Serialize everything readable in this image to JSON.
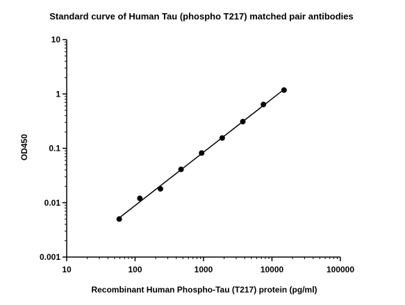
{
  "chart_data": {
    "type": "scatter",
    "title": "Standard curve of Human Tau (phospho T217) matched pair antibodies",
    "xlabel": "Recombinant Human Phospho-Tau (T217) protein (pg/ml)",
    "ylabel": "OD450",
    "x_scale": "log",
    "y_scale": "log",
    "xlim": [
      10,
      100000
    ],
    "ylim": [
      0.001,
      10
    ],
    "x_ticks": [
      "10",
      "100",
      "1000",
      "10000",
      "100000"
    ],
    "y_ticks": [
      "0.001",
      "0.01",
      "0.1",
      "1",
      "10"
    ],
    "grid": false,
    "legend": "none",
    "series": [
      {
        "x": [
          58.6,
          117.2,
          234.4,
          468.8,
          937.5,
          1875,
          3750,
          7500,
          15000
        ],
        "y": [
          0.005,
          0.012,
          0.018,
          0.041,
          0.082,
          0.155,
          0.31,
          0.64,
          1.18
        ],
        "fit_line": true,
        "color": "#000000"
      }
    ]
  }
}
